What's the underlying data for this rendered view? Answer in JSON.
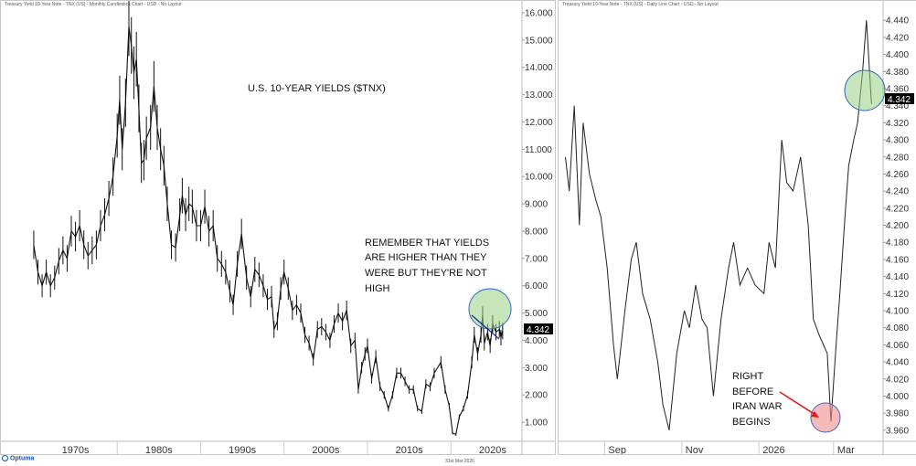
{
  "left_header": "Treasury Yield 10-Year Note - TNX (US) - Monthly Candlestick Chart - USD - No Layout",
  "right_header": "Treasury Yield 10-Year Note - TNX (US) - Daily Line Chart - USD - No Layout",
  "footer_brand": "Optuma",
  "footer_date": "31st Mar 2026",
  "chart_data": [
    {
      "type": "line",
      "title": "U.S. 10-YEAR YIELDS ($TNX)",
      "subtitle": "Monthly candlestick",
      "annotation": "REMEMBER THAT YIELDS ARE HIGHER THAN THEY WERE BUT THEY'RE NOT HIGH",
      "annotation_lines": [
        "REMEMBER THAT YIELDS",
        "ARE HIGHER THAN THEY",
        "WERE BUT THEY'RE NOT",
        "HIGH"
      ],
      "x_tick_labels": [
        "1970s",
        "1980s",
        "1990s",
        "2000s",
        "2010s",
        "2020s"
      ],
      "y_tick_labels": [
        "1.000",
        "2.000",
        "3.000",
        "4.000",
        "5.000",
        "6.000",
        "7.000",
        "8.000",
        "9.000",
        "10.000",
        "11.000",
        "12.000",
        "13.000",
        "14.000",
        "15.000",
        "16.000"
      ],
      "ylim": [
        0.3,
        16.1
      ],
      "last_value_label": "4.342",
      "series": [
        {
          "x": [
            1970.0,
            1970.5,
            1971.0,
            1971.5,
            1972.0,
            1972.5,
            1973.0,
            1973.5,
            1974.0,
            1974.5,
            1975.0,
            1975.5,
            1976.0,
            1976.5,
            1977.0,
            1977.5,
            1978.0,
            1978.5,
            1979.0,
            1979.5,
            1980.0,
            1980.3,
            1980.6,
            1981.0,
            1981.4,
            1981.7,
            1982.0,
            1982.3,
            1982.6,
            1982.9,
            1983.2,
            1983.5,
            1984.0,
            1984.4,
            1984.8,
            1985.2,
            1985.6,
            1986.0,
            1986.5,
            1987.0,
            1987.5,
            1987.8,
            1988.2,
            1988.6,
            1989.0,
            1989.5,
            1990.0,
            1990.5,
            1991.0,
            1991.5,
            1992.0,
            1992.5,
            1993.0,
            1993.5,
            1993.9,
            1994.4,
            1994.9,
            1995.5,
            1996.0,
            1996.5,
            1997.0,
            1997.5,
            1998.0,
            1998.5,
            1998.8,
            1999.2,
            1999.6,
            2000.0,
            2000.5,
            2001.0,
            2001.5,
            2002.0,
            2002.5,
            2003.0,
            2003.5,
            2004.0,
            2004.5,
            2005.0,
            2005.5,
            2006.0,
            2006.5,
            2007.0,
            2007.5,
            2008.0,
            2008.5,
            2008.9,
            2009.3,
            2009.7,
            2010.0,
            2010.5,
            2011.0,
            2011.5,
            2012.0,
            2012.5,
            2013.0,
            2013.5,
            2014.0,
            2014.5,
            2015.0,
            2015.5,
            2016.0,
            2016.5,
            2017.0,
            2017.5,
            2018.0,
            2018.8,
            2019.3,
            2019.8,
            2020.2,
            2020.6,
            2021.0,
            2021.5,
            2022.0,
            2022.5,
            2022.8,
            2023.2,
            2023.6,
            2023.8,
            2024.0,
            2024.4,
            2024.7,
            2025.0,
            2025.4,
            2025.8,
            2026.0,
            2026.2
          ],
          "values": [
            7.5,
            6.5,
            6.0,
            6.5,
            6.0,
            6.3,
            6.9,
            7.3,
            7.0,
            8.0,
            7.8,
            8.2,
            7.5,
            7.1,
            7.3,
            7.5,
            8.2,
            8.6,
            9.2,
            10.0,
            11.5,
            12.8,
            11.0,
            12.7,
            15.5,
            14.8,
            13.8,
            14.3,
            12.5,
            10.5,
            10.6,
            11.4,
            11.8,
            13.3,
            11.8,
            11.0,
            10.4,
            9.0,
            7.5,
            7.4,
            8.6,
            9.3,
            8.6,
            9.0,
            8.9,
            8.2,
            8.2,
            8.9,
            8.0,
            8.2,
            7.0,
            6.8,
            6.5,
            5.8,
            5.3,
            6.8,
            7.9,
            6.3,
            5.6,
            6.6,
            6.4,
            6.0,
            5.5,
            5.6,
            4.4,
            4.7,
            5.9,
            6.5,
            5.9,
            5.1,
            5.3,
            5.0,
            4.2,
            3.9,
            3.3,
            4.4,
            4.5,
            4.3,
            4.0,
            4.6,
            5.0,
            4.7,
            5.1,
            3.8,
            4.0,
            2.2,
            3.0,
            3.5,
            3.8,
            2.6,
            3.4,
            2.3,
            2.0,
            1.5,
            2.0,
            2.8,
            2.8,
            2.5,
            2.2,
            2.2,
            1.5,
            1.4,
            2.4,
            2.3,
            2.8,
            3.2,
            2.2,
            1.6,
            0.6,
            0.55,
            1.2,
            1.5,
            2.0,
            3.2,
            4.2,
            3.5,
            4.2,
            4.9,
            3.9,
            4.3,
            3.8,
            4.6,
            4.3,
            4.4,
            4.1,
            4.34
          ]
        }
      ]
    },
    {
      "type": "line",
      "subtitle": "Daily line",
      "annotation": "RIGHT BEFORE IRAN WAR BEGINS",
      "annotation_lines": [
        "RIGHT",
        "BEFORE",
        "IRAN WAR",
        "BEGINS"
      ],
      "x_tick_labels": [
        "Sep",
        "Nov",
        "2026",
        "Mar"
      ],
      "y_tick_labels": [
        "3.960",
        "3.980",
        "4.000",
        "4.020",
        "4.040",
        "4.060",
        "4.080",
        "4.100",
        "4.120",
        "4.140",
        "4.160",
        "4.180",
        "4.200",
        "4.220",
        "4.240",
        "4.260",
        "4.280",
        "4.300",
        "4.320",
        "4.340",
        "4.360",
        "4.380",
        "4.400",
        "4.420",
        "4.440"
      ],
      "ylim": [
        3.947,
        4.452
      ],
      "last_value_label": "4.342",
      "series": [
        {
          "x": [
            "2025-08-01",
            "2025-08-04",
            "2025-08-08",
            "2025-08-12",
            "2025-08-15",
            "2025-08-20",
            "2025-08-25",
            "2025-08-29",
            "2025-09-03",
            "2025-09-08",
            "2025-09-11",
            "2025-09-17",
            "2025-09-22",
            "2025-09-26",
            "2025-10-01",
            "2025-10-07",
            "2025-10-13",
            "2025-10-17",
            "2025-10-22",
            "2025-10-28",
            "2025-11-03",
            "2025-11-07",
            "2025-11-12",
            "2025-11-17",
            "2025-11-21",
            "2025-11-26",
            "2025-12-02",
            "2025-12-08",
            "2025-12-12",
            "2025-12-17",
            "2025-12-23",
            "2025-12-29",
            "2026-01-05",
            "2026-01-09",
            "2026-01-14",
            "2026-01-19",
            "2026-01-23",
            "2026-01-28",
            "2026-02-03",
            "2026-02-09",
            "2026-02-13",
            "2026-02-18",
            "2026-02-24",
            "2026-02-27",
            "2026-03-03",
            "2026-03-06",
            "2026-03-10",
            "2026-03-13",
            "2026-03-17",
            "2026-03-20",
            "2026-03-24",
            "2026-03-27",
            "2026-03-31"
          ],
          "values": [
            4.28,
            4.24,
            4.34,
            4.2,
            4.32,
            4.26,
            4.23,
            4.21,
            4.15,
            4.06,
            4.02,
            4.1,
            4.16,
            4.18,
            4.12,
            4.09,
            4.04,
            3.99,
            3.96,
            4.05,
            4.1,
            4.08,
            4.13,
            4.09,
            4.08,
            4.0,
            4.09,
            4.15,
            4.18,
            4.13,
            4.15,
            4.13,
            4.12,
            4.18,
            4.15,
            4.3,
            4.25,
            4.24,
            4.28,
            4.2,
            4.09,
            4.07,
            4.05,
            3.97,
            4.06,
            4.12,
            4.21,
            4.27,
            4.3,
            4.32,
            4.38,
            4.44,
            4.342
          ]
        }
      ]
    }
  ]
}
